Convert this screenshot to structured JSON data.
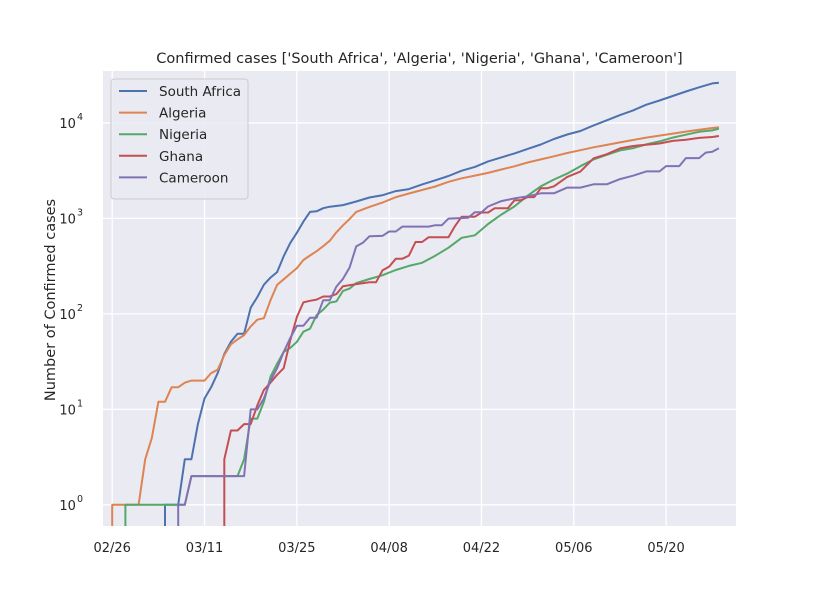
{
  "chart_data": {
    "type": "line",
    "title": "Confirmed cases ['South Africa', 'Algeria', 'Nigeria', 'Ghana', 'Cameroon']",
    "xlabel": "",
    "ylabel": "Number of Confirmed cases",
    "yscale": "log",
    "ylim": [
      0.6,
      35000
    ],
    "x_tick_labels": [
      "02/26",
      "03/11",
      "03/25",
      "04/08",
      "04/22",
      "05/06",
      "05/20"
    ],
    "y_tick_labels": [
      {
        "base": "10",
        "exp": "0"
      },
      {
        "base": "10",
        "exp": "1"
      },
      {
        "base": "10",
        "exp": "2"
      },
      {
        "base": "10",
        "exp": "3"
      },
      {
        "base": "10",
        "exp": "4"
      }
    ],
    "grid": true,
    "legend_position": "top-left",
    "series": [
      {
        "name": "South Africa",
        "color": "#4c72b0",
        "points": [
          [
            "03/05",
            1
          ],
          [
            "03/07",
            1
          ],
          [
            "03/08",
            3
          ],
          [
            "03/09",
            3
          ],
          [
            "03/10",
            7
          ],
          [
            "03/11",
            13
          ],
          [
            "03/12",
            17
          ],
          [
            "03/13",
            24
          ],
          [
            "03/14",
            38
          ],
          [
            "03/15",
            51
          ],
          [
            "03/16",
            62
          ],
          [
            "03/17",
            62
          ],
          [
            "03/18",
            116
          ],
          [
            "03/19",
            150
          ],
          [
            "03/20",
            202
          ],
          [
            "03/21",
            240
          ],
          [
            "03/22",
            274
          ],
          [
            "03/23",
            402
          ],
          [
            "03/24",
            554
          ],
          [
            "03/25",
            709
          ],
          [
            "03/26",
            927
          ],
          [
            "03/27",
            1170
          ],
          [
            "03/28",
            1187
          ],
          [
            "03/29",
            1280
          ],
          [
            "03/30",
            1326
          ],
          [
            "04/01",
            1380
          ],
          [
            "04/03",
            1505
          ],
          [
            "04/05",
            1655
          ],
          [
            "04/07",
            1749
          ],
          [
            "04/09",
            1934
          ],
          [
            "04/11",
            2028
          ],
          [
            "04/13",
            2272
          ],
          [
            "04/15",
            2506
          ],
          [
            "04/17",
            2783
          ],
          [
            "04/19",
            3158
          ],
          [
            "04/21",
            3465
          ],
          [
            "04/23",
            3953
          ],
          [
            "04/25",
            4361
          ],
          [
            "04/27",
            4793
          ],
          [
            "04/29",
            5350
          ],
          [
            "05/01",
            5951
          ],
          [
            "05/03",
            6783
          ],
          [
            "05/05",
            7572
          ],
          [
            "05/07",
            8232
          ],
          [
            "05/09",
            9420
          ],
          [
            "05/11",
            10652
          ],
          [
            "05/13",
            12074
          ],
          [
            "05/15",
            13524
          ],
          [
            "05/17",
            15515
          ],
          [
            "05/19",
            17200
          ],
          [
            "05/21",
            19137
          ],
          [
            "05/23",
            21343
          ],
          [
            "05/25",
            23615
          ],
          [
            "05/27",
            25937
          ],
          [
            "05/28",
            26400
          ]
        ]
      },
      {
        "name": "Algeria",
        "color": "#dd8452",
        "points": [
          [
            "02/26",
            1
          ],
          [
            "02/28",
            1
          ],
          [
            "03/01",
            1
          ],
          [
            "03/02",
            3
          ],
          [
            "03/03",
            5
          ],
          [
            "03/04",
            12
          ],
          [
            "03/05",
            12
          ],
          [
            "03/06",
            17
          ],
          [
            "03/07",
            17
          ],
          [
            "03/08",
            19
          ],
          [
            "03/09",
            20
          ],
          [
            "03/10",
            20
          ],
          [
            "03/11",
            20
          ],
          [
            "03/12",
            24
          ],
          [
            "03/13",
            26
          ],
          [
            "03/14",
            37
          ],
          [
            "03/15",
            48
          ],
          [
            "03/16",
            54
          ],
          [
            "03/17",
            60
          ],
          [
            "03/18",
            74
          ],
          [
            "03/19",
            87
          ],
          [
            "03/20",
            90
          ],
          [
            "03/21",
            139
          ],
          [
            "03/22",
            201
          ],
          [
            "03/23",
            230
          ],
          [
            "03/24",
            264
          ],
          [
            "03/25",
            302
          ],
          [
            "03/26",
            367
          ],
          [
            "03/27",
            409
          ],
          [
            "03/28",
            454
          ],
          [
            "03/29",
            511
          ],
          [
            "03/30",
            584
          ],
          [
            "03/31",
            716
          ],
          [
            "04/01",
            847
          ],
          [
            "04/02",
            986
          ],
          [
            "04/03",
            1171
          ],
          [
            "04/05",
            1320
          ],
          [
            "04/07",
            1468
          ],
          [
            "04/09",
            1666
          ],
          [
            "04/11",
            1825
          ],
          [
            "04/13",
            1983
          ],
          [
            "04/15",
            2160
          ],
          [
            "04/17",
            2418
          ],
          [
            "04/19",
            2629
          ],
          [
            "04/21",
            2811
          ],
          [
            "04/23",
            2995
          ],
          [
            "04/25",
            3256
          ],
          [
            "04/27",
            3517
          ],
          [
            "04/29",
            3848
          ],
          [
            "05/01",
            4154
          ],
          [
            "05/03",
            4474
          ],
          [
            "05/05",
            4838
          ],
          [
            "05/07",
            5182
          ],
          [
            "05/09",
            5558
          ],
          [
            "05/11",
            5891
          ],
          [
            "05/13",
            6253
          ],
          [
            "05/15",
            6629
          ],
          [
            "05/17",
            7019
          ],
          [
            "05/19",
            7377
          ],
          [
            "05/21",
            7728
          ],
          [
            "05/23",
            8113
          ],
          [
            "05/25",
            8503
          ],
          [
            "05/27",
            8857
          ],
          [
            "05/28",
            8997
          ]
        ]
      },
      {
        "name": "Nigeria",
        "color": "#55a868",
        "points": [
          [
            "02/28",
            1
          ],
          [
            "03/01",
            1
          ],
          [
            "03/05",
            1
          ],
          [
            "03/08",
            1
          ],
          [
            "03/09",
            2
          ],
          [
            "03/12",
            2
          ],
          [
            "03/15",
            2
          ],
          [
            "03/16",
            2
          ],
          [
            "03/17",
            3
          ],
          [
            "03/18",
            8
          ],
          [
            "03/19",
            8
          ],
          [
            "03/20",
            12
          ],
          [
            "03/21",
            22
          ],
          [
            "03/22",
            30
          ],
          [
            "03/23",
            40
          ],
          [
            "03/24",
            44
          ],
          [
            "03/25",
            51
          ],
          [
            "03/26",
            65
          ],
          [
            "03/27",
            70
          ],
          [
            "03/28",
            97
          ],
          [
            "03/29",
            111
          ],
          [
            "03/30",
            131
          ],
          [
            "03/31",
            135
          ],
          [
            "04/01",
            174
          ],
          [
            "04/02",
            184
          ],
          [
            "04/03",
            210
          ],
          [
            "04/05",
            232
          ],
          [
            "04/07",
            254
          ],
          [
            "04/09",
            288
          ],
          [
            "04/11",
            318
          ],
          [
            "04/13",
            343
          ],
          [
            "04/15",
            407
          ],
          [
            "04/17",
            493
          ],
          [
            "04/19",
            627
          ],
          [
            "04/21",
            665
          ],
          [
            "04/23",
            873
          ],
          [
            "04/25",
            1095
          ],
          [
            "04/27",
            1337
          ],
          [
            "04/29",
            1728
          ],
          [
            "05/01",
            2170
          ],
          [
            "05/03",
            2558
          ],
          [
            "05/05",
            2950
          ],
          [
            "05/07",
            3526
          ],
          [
            "05/09",
            4151
          ],
          [
            "05/11",
            4641
          ],
          [
            "05/13",
            5162
          ],
          [
            "05/15",
            5445
          ],
          [
            "05/17",
            5959
          ],
          [
            "05/19",
            6401
          ],
          [
            "05/21",
            7016
          ],
          [
            "05/23",
            7526
          ],
          [
            "05/25",
            8068
          ],
          [
            "05/27",
            8344
          ],
          [
            "05/28",
            8733
          ]
        ]
      },
      {
        "name": "Ghana",
        "color": "#c44e52",
        "points": [
          [
            "03/14",
            3
          ],
          [
            "03/15",
            6
          ],
          [
            "03/16",
            6
          ],
          [
            "03/17",
            7
          ],
          [
            "03/18",
            7
          ],
          [
            "03/19",
            11
          ],
          [
            "03/20",
            16
          ],
          [
            "03/21",
            19
          ],
          [
            "03/22",
            23
          ],
          [
            "03/23",
            27
          ],
          [
            "03/24",
            53
          ],
          [
            "03/25",
            93
          ],
          [
            "03/26",
            132
          ],
          [
            "03/27",
            137
          ],
          [
            "03/28",
            141
          ],
          [
            "03/29",
            152
          ],
          [
            "03/30",
            152
          ],
          [
            "03/31",
            161
          ],
          [
            "04/01",
            195
          ],
          [
            "04/03",
            205
          ],
          [
            "04/05",
            214
          ],
          [
            "04/06",
            214
          ],
          [
            "04/07",
            287
          ],
          [
            "04/08",
            313
          ],
          [
            "04/09",
            378
          ],
          [
            "04/10",
            378
          ],
          [
            "04/11",
            408
          ],
          [
            "04/12",
            566
          ],
          [
            "04/13",
            566
          ],
          [
            "04/14",
            636
          ],
          [
            "04/17",
            636
          ],
          [
            "04/18",
            834
          ],
          [
            "04/19",
            1042
          ],
          [
            "04/21",
            1042
          ],
          [
            "04/22",
            1154
          ],
          [
            "04/23",
            1154
          ],
          [
            "04/24",
            1279
          ],
          [
            "04/26",
            1279
          ],
          [
            "04/27",
            1550
          ],
          [
            "04/28",
            1550
          ],
          [
            "04/29",
            1671
          ],
          [
            "04/30",
            1671
          ],
          [
            "05/01",
            2074
          ],
          [
            "05/02",
            2074
          ],
          [
            "05/03",
            2169
          ],
          [
            "05/05",
            2719
          ],
          [
            "05/07",
            3091
          ],
          [
            "05/09",
            4263
          ],
          [
            "05/11",
            4700
          ],
          [
            "05/13",
            5408
          ],
          [
            "05/15",
            5735
          ],
          [
            "05/17",
            5918
          ],
          [
            "05/19",
            6096
          ],
          [
            "05/21",
            6486
          ],
          [
            "05/23",
            6683
          ],
          [
            "05/25",
            6964
          ],
          [
            "05/27",
            7117
          ],
          [
            "05/28",
            7303
          ]
        ]
      },
      {
        "name": "Cameroon",
        "color": "#8172b3",
        "points": [
          [
            "03/07",
            1
          ],
          [
            "03/08",
            1
          ],
          [
            "03/09",
            2
          ],
          [
            "03/12",
            2
          ],
          [
            "03/15",
            2
          ],
          [
            "03/17",
            2
          ],
          [
            "03/18",
            10
          ],
          [
            "03/19",
            10
          ],
          [
            "03/20",
            13
          ],
          [
            "03/21",
            20
          ],
          [
            "03/22",
            27
          ],
          [
            "03/23",
            40
          ],
          [
            "03/24",
            56
          ],
          [
            "03/25",
            75
          ],
          [
            "03/26",
            75
          ],
          [
            "03/27",
            91
          ],
          [
            "03/28",
            91
          ],
          [
            "03/29",
            139
          ],
          [
            "03/30",
            139
          ],
          [
            "03/31",
            193
          ],
          [
            "04/01",
            233
          ],
          [
            "04/02",
            306
          ],
          [
            "04/03",
            509
          ],
          [
            "04/04",
            555
          ],
          [
            "04/05",
            650
          ],
          [
            "04/07",
            658
          ],
          [
            "04/08",
            730
          ],
          [
            "04/09",
            730
          ],
          [
            "04/10",
            820
          ],
          [
            "04/14",
            820
          ],
          [
            "04/15",
            848
          ],
          [
            "04/16",
            848
          ],
          [
            "04/17",
            996
          ],
          [
            "04/20",
            1017
          ],
          [
            "04/21",
            1163
          ],
          [
            "04/22",
            1163
          ],
          [
            "04/23",
            1334
          ],
          [
            "04/25",
            1518
          ],
          [
            "04/27",
            1621
          ],
          [
            "04/29",
            1705
          ],
          [
            "05/01",
            1832
          ],
          [
            "05/03",
            1832
          ],
          [
            "05/05",
            2104
          ],
          [
            "05/07",
            2104
          ],
          [
            "05/09",
            2274
          ],
          [
            "05/11",
            2274
          ],
          [
            "05/13",
            2579
          ],
          [
            "05/15",
            2800
          ],
          [
            "05/17",
            3105
          ],
          [
            "05/19",
            3105
          ],
          [
            "05/20",
            3529
          ],
          [
            "05/22",
            3529
          ],
          [
            "05/23",
            4288
          ],
          [
            "05/25",
            4288
          ],
          [
            "05/26",
            4890
          ],
          [
            "05/27",
            5000
          ],
          [
            "05/28",
            5436
          ]
        ]
      }
    ]
  }
}
